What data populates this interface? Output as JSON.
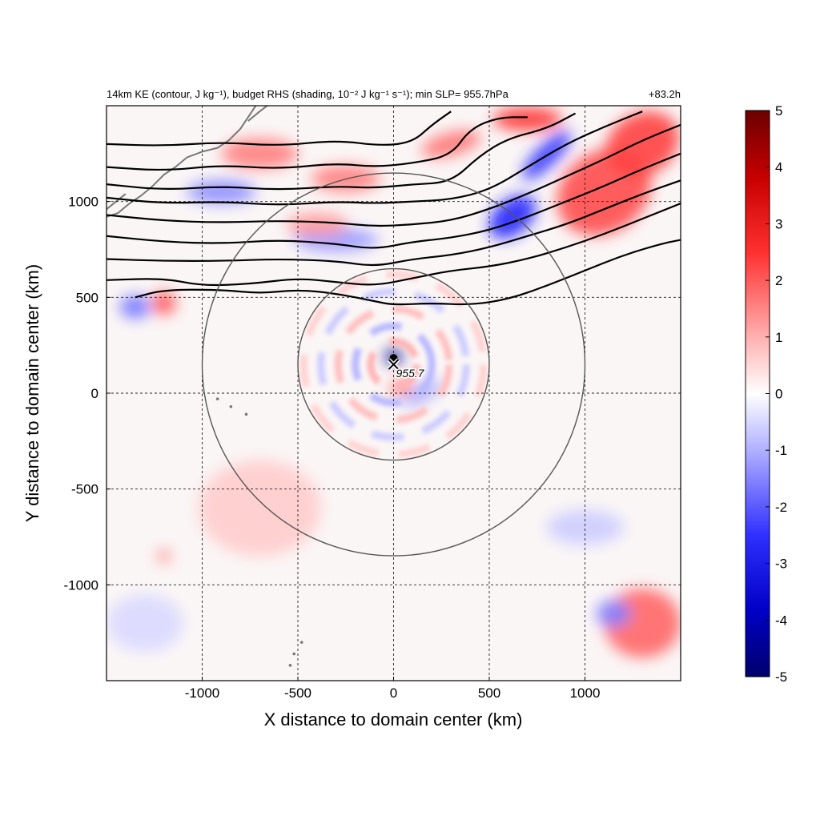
{
  "chart_data": {
    "type": "heatmap",
    "title_left": "14km KE (contour, J kg⁻¹), budget RHS (shading, 10⁻² J kg⁻¹ s⁻¹); min SLP= 955.7hPa",
    "title_right": "+83.2h",
    "xlabel": "X distance to domain center (km)",
    "ylabel": "Y distance to domain center (km)",
    "xlim": [
      -1500,
      1500
    ],
    "ylim": [
      -1500,
      1500
    ],
    "xticks": [
      -1000,
      -500,
      0,
      500,
      1000
    ],
    "yticks": [
      -1000,
      -500,
      0,
      500,
      1000
    ],
    "grid": "dashed",
    "colorbar": {
      "min": -5,
      "max": 5,
      "ticks": [
        5,
        4,
        3,
        2,
        1,
        0,
        -1,
        -2,
        -3,
        -4,
        -5
      ],
      "colors": [
        "#00006b",
        "#0000ff",
        "#ffffff",
        "#ff0000",
        "#6b0000"
      ]
    },
    "storm_center": {
      "x": 0,
      "y": 150,
      "label": "955.7"
    },
    "circles_km": [
      {
        "cx": 0,
        "cy": 150,
        "r": 500
      },
      {
        "cx": 0,
        "cy": 150,
        "r": 1000
      }
    ],
    "ke_contours": [
      [
        [
          -1500,
          1300
        ],
        [
          -1200,
          1290
        ],
        [
          -900,
          1310
        ],
        [
          -600,
          1290
        ],
        [
          -300,
          1320
        ],
        [
          -60,
          1290
        ],
        [
          100,
          1310
        ],
        [
          200,
          1400
        ],
        [
          300,
          1470
        ]
      ],
      [
        [
          -1500,
          1180
        ],
        [
          -1200,
          1160
        ],
        [
          -900,
          1190
        ],
        [
          -600,
          1170
        ],
        [
          -300,
          1200
        ],
        [
          -100,
          1180
        ],
        [
          100,
          1200
        ],
        [
          300,
          1240
        ],
        [
          400,
          1380
        ],
        [
          550,
          1440
        ],
        [
          700,
          1440
        ]
      ],
      [
        [
          -1500,
          1090
        ],
        [
          -1200,
          1060
        ],
        [
          -900,
          1080
        ],
        [
          -600,
          1060
        ],
        [
          -300,
          1080
        ],
        [
          -100,
          1070
        ],
        [
          100,
          1090
        ],
        [
          300,
          1100
        ],
        [
          450,
          1240
        ],
        [
          600,
          1330
        ],
        [
          800,
          1380
        ],
        [
          950,
          1460
        ]
      ],
      [
        [
          -1500,
          1020
        ],
        [
          -1200,
          990
        ],
        [
          -900,
          1000
        ],
        [
          -600,
          980
        ],
        [
          -300,
          1000
        ],
        [
          -100,
          990
        ],
        [
          100,
          1000
        ],
        [
          300,
          1010
        ],
        [
          500,
          1060
        ],
        [
          700,
          1180
        ],
        [
          900,
          1300
        ],
        [
          1100,
          1390
        ],
        [
          1300,
          1470
        ]
      ],
      [
        [
          -1500,
          930
        ],
        [
          -1200,
          900
        ],
        [
          -900,
          890
        ],
        [
          -600,
          900
        ],
        [
          -300,
          890
        ],
        [
          -100,
          870
        ],
        [
          100,
          880
        ],
        [
          300,
          900
        ],
        [
          500,
          960
        ],
        [
          700,
          1040
        ],
        [
          900,
          1130
        ],
        [
          1100,
          1220
        ],
        [
          1300,
          1320
        ],
        [
          1500,
          1400
        ]
      ],
      [
        [
          -1500,
          820
        ],
        [
          -1200,
          790
        ],
        [
          -900,
          780
        ],
        [
          -600,
          800
        ],
        [
          -300,
          780
        ],
        [
          -100,
          750
        ],
        [
          100,
          790
        ],
        [
          300,
          810
        ],
        [
          500,
          850
        ],
        [
          700,
          920
        ],
        [
          900,
          1000
        ],
        [
          1100,
          1080
        ],
        [
          1300,
          1170
        ],
        [
          1500,
          1250
        ]
      ],
      [
        [
          -1500,
          700
        ],
        [
          -1200,
          690
        ],
        [
          -900,
          690
        ],
        [
          -600,
          700
        ],
        [
          -300,
          690
        ],
        [
          -100,
          660
        ],
        [
          100,
          700
        ],
        [
          300,
          720
        ],
        [
          500,
          760
        ],
        [
          700,
          820
        ],
        [
          900,
          880
        ],
        [
          1100,
          960
        ],
        [
          1300,
          1040
        ],
        [
          1500,
          1110
        ]
      ],
      [
        [
          -1500,
          590
        ],
        [
          -1200,
          600
        ],
        [
          -1000,
          560
        ],
        [
          -750,
          570
        ],
        [
          -500,
          600
        ],
        [
          -300,
          580
        ],
        [
          -100,
          560
        ],
        [
          100,
          600
        ],
        [
          300,
          640
        ],
        [
          500,
          660
        ],
        [
          700,
          700
        ],
        [
          900,
          760
        ],
        [
          1100,
          830
        ],
        [
          1300,
          910
        ],
        [
          1500,
          990
        ]
      ],
      [
        [
          -1350,
          500
        ],
        [
          -1200,
          540
        ],
        [
          -900,
          540
        ],
        [
          -700,
          520
        ],
        [
          -500,
          540
        ],
        [
          -300,
          520
        ],
        [
          -100,
          480
        ],
        [
          0,
          460
        ],
        [
          200,
          470
        ],
        [
          400,
          460
        ],
        [
          600,
          490
        ],
        [
          800,
          560
        ],
        [
          1000,
          640
        ],
        [
          1200,
          720
        ],
        [
          1400,
          780
        ],
        [
          1500,
          800
        ]
      ]
    ],
    "features": [
      {
        "kind": "neg",
        "x": 620,
        "y": 920,
        "rx": 140,
        "ry": 90,
        "rot": -40,
        "strength": 0.85
      },
      {
        "kind": "neg",
        "x": 800,
        "y": 1240,
        "rx": 170,
        "ry": 55,
        "rot": -45,
        "strength": 0.8
      },
      {
        "kind": "pos",
        "x": 1100,
        "y": 1050,
        "rx": 260,
        "ry": 210,
        "rot": -35,
        "strength": 0.7
      },
      {
        "kind": "pos",
        "x": 1300,
        "y": 1300,
        "rx": 200,
        "ry": 160,
        "rot": -30,
        "strength": 0.75
      },
      {
        "kind": "pos",
        "x": 700,
        "y": 1430,
        "rx": 180,
        "ry": 60,
        "rot": 0,
        "strength": 0.8
      },
      {
        "kind": "pos",
        "x": 300,
        "y": 1300,
        "rx": 160,
        "ry": 60,
        "rot": -15,
        "strength": 0.55
      },
      {
        "kind": "pos",
        "x": -250,
        "y": 1120,
        "rx": 180,
        "ry": 70,
        "rot": 0,
        "strength": 0.5
      },
      {
        "kind": "pos",
        "x": -700,
        "y": 1250,
        "rx": 200,
        "ry": 80,
        "rot": 0,
        "strength": 0.5
      },
      {
        "kind": "neg",
        "x": -900,
        "y": 1050,
        "rx": 180,
        "ry": 60,
        "rot": 0,
        "strength": 0.45
      },
      {
        "kind": "neg",
        "x": -300,
        "y": 800,
        "rx": 220,
        "ry": 60,
        "rot": 0,
        "strength": 0.4
      },
      {
        "kind": "pos",
        "x": -400,
        "y": 880,
        "rx": 160,
        "ry": 60,
        "rot": 0,
        "strength": 0.4
      },
      {
        "kind": "pos",
        "x": -1200,
        "y": 470,
        "rx": 60,
        "ry": 60,
        "rot": 0,
        "strength": 0.7
      },
      {
        "kind": "neg",
        "x": -1350,
        "y": 450,
        "rx": 80,
        "ry": 60,
        "rot": 0,
        "strength": 0.55
      },
      {
        "kind": "neg",
        "x": 0,
        "y": 190,
        "rx": 45,
        "ry": 40,
        "rot": 0,
        "strength": 0.95
      },
      {
        "kind": "pos",
        "x": 40,
        "y": 30,
        "rx": 60,
        "ry": 35,
        "rot": -20,
        "strength": 0.6
      },
      {
        "kind": "neg",
        "x": 150,
        "y": 0,
        "rx": 120,
        "ry": 40,
        "rot": -30,
        "strength": 0.35
      },
      {
        "kind": "pos",
        "x": -700,
        "y": -600,
        "rx": 320,
        "ry": 250,
        "rot": 0,
        "strength": 0.2
      },
      {
        "kind": "pos",
        "x": 1300,
        "y": -1200,
        "rx": 200,
        "ry": 180,
        "rot": 0,
        "strength": 0.6
      },
      {
        "kind": "neg",
        "x": 1150,
        "y": -1150,
        "rx": 90,
        "ry": 70,
        "rot": 0,
        "strength": 0.5
      },
      {
        "kind": "neg",
        "x": 1000,
        "y": -700,
        "rx": 200,
        "ry": 90,
        "rot": 0,
        "strength": 0.2
      },
      {
        "kind": "pos",
        "x": -1200,
        "y": -850,
        "rx": 30,
        "ry": 30,
        "rot": 0,
        "strength": 0.6
      },
      {
        "kind": "neg",
        "x": -1300,
        "y": -1200,
        "rx": 200,
        "ry": 150,
        "rot": 0,
        "strength": 0.15
      }
    ],
    "rings": [
      {
        "r": 120,
        "kind": "pos",
        "strength": 0.3
      },
      {
        "r": 200,
        "kind": "neg",
        "strength": 0.28
      },
      {
        "r": 290,
        "kind": "pos",
        "strength": 0.25
      },
      {
        "r": 380,
        "kind": "neg",
        "strength": 0.2
      },
      {
        "r": 470,
        "kind": "pos",
        "strength": 0.18
      }
    ]
  }
}
